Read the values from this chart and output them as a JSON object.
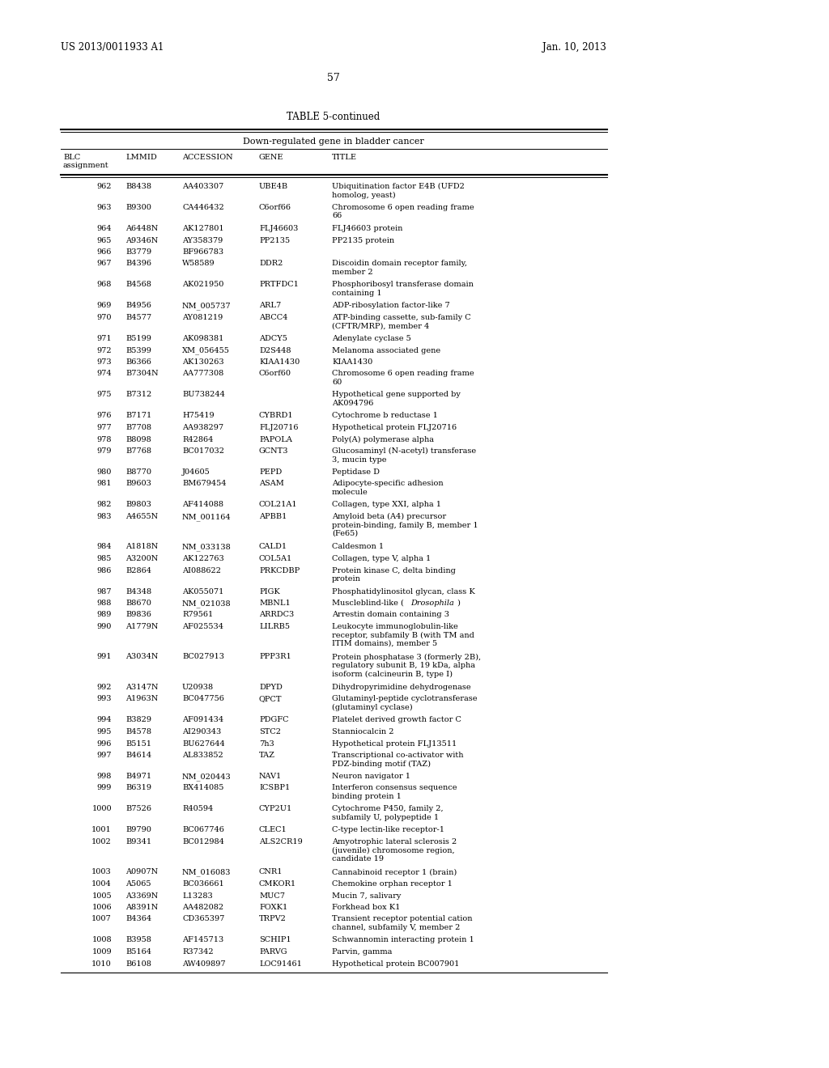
{
  "header_left": "US 2013/0011933 A1",
  "header_right": "Jan. 10, 2013",
  "page_number": "57",
  "table_title": "TABLE 5-continued",
  "subtitle": "Down-regulated gene in bladder cancer",
  "col_headers": [
    "BLC\nassignment",
    "LMMID",
    "ACCESSION",
    "GENE",
    "TITLE"
  ],
  "rows": [
    [
      "962",
      "B8438",
      "AA403307",
      "UBE4B",
      "Ubiquitination factor E4B (UFD2\nhomolog, yeast)"
    ],
    [
      "963",
      "B9300",
      "CA446432",
      "C6orf66",
      "Chromosome 6 open reading frame\n66"
    ],
    [
      "964",
      "A6448N",
      "AK127801",
      "FLJ46603",
      "FLJ46603 protein"
    ],
    [
      "965",
      "A9346N",
      "AY358379",
      "PP2135",
      "PP2135 protein"
    ],
    [
      "966",
      "B3779",
      "BF966783",
      "",
      ""
    ],
    [
      "967",
      "B4396",
      "W58589",
      "DDR2",
      "Discoidin domain receptor family,\nmember 2"
    ],
    [
      "968",
      "B4568",
      "AK021950",
      "PRTFDC1",
      "Phosphoribosyl transferase domain\ncontaining 1"
    ],
    [
      "969",
      "B4956",
      "NM_005737",
      "ARL7",
      "ADP-ribosylation factor-like 7"
    ],
    [
      "970",
      "B4577",
      "AY081219",
      "ABCC4",
      "ATP-binding cassette, sub-family C\n(CFTR/MRP), member 4"
    ],
    [
      "971",
      "B5199",
      "AK098381",
      "ADCY5",
      "Adenylate cyclase 5"
    ],
    [
      "972",
      "B5399",
      "XM_056455",
      "D2S448",
      "Melanoma associated gene"
    ],
    [
      "973",
      "B6366",
      "AK130263",
      "KIAA1430",
      "KIAA1430"
    ],
    [
      "974",
      "B7304N",
      "AA777308",
      "C6orf60",
      "Chromosome 6 open reading frame\n60"
    ],
    [
      "975",
      "B7312",
      "BU738244",
      "",
      "Hypothetical gene supported by\nAK094796"
    ],
    [
      "976",
      "B7171",
      "H75419",
      "CYBRD1",
      "Cytochrome b reductase 1"
    ],
    [
      "977",
      "B7708",
      "AA938297",
      "FLJ20716",
      "Hypothetical protein FLJ20716"
    ],
    [
      "978",
      "B8098",
      "R42864",
      "PAPOLA",
      "Poly(A) polymerase alpha"
    ],
    [
      "979",
      "B7768",
      "BC017032",
      "GCNT3",
      "Glucosaminyl (N-acetyl) transferase\n3, mucin type"
    ],
    [
      "980",
      "B8770",
      "J04605",
      "PEPD",
      "Peptidase D"
    ],
    [
      "981",
      "B9603",
      "BM679454",
      "ASAM",
      "Adipocyte-specific adhesion\nmolecule"
    ],
    [
      "982",
      "B9803",
      "AF414088",
      "COL21A1",
      "Collagen, type XXI, alpha 1"
    ],
    [
      "983",
      "A4655N",
      "NM_001164",
      "APBB1",
      "Amyloid beta (A4) precursor\nprotein-binding, family B, member 1\n(Fe65)"
    ],
    [
      "984",
      "A1818N",
      "NM_033138",
      "CALD1",
      "Caldesmon 1"
    ],
    [
      "985",
      "A3200N",
      "AK122763",
      "COL5A1",
      "Collagen, type V, alpha 1"
    ],
    [
      "986",
      "B2864",
      "AI088622",
      "PRKCDBP",
      "Protein kinase C, delta binding\nprotein"
    ],
    [
      "987",
      "B4348",
      "AK055071",
      "PIGK",
      "Phosphatidylinositol glycan, class K"
    ],
    [
      "988",
      "B8670",
      "NM_021038",
      "MBNL1",
      "Muscleblind-like (Drosophila)"
    ],
    [
      "989",
      "B9836",
      "R79561",
      "ARRDC3",
      "Arrestin domain containing 3"
    ],
    [
      "990",
      "A1779N",
      "AF025534",
      "LILRB5",
      "Leukocyte immunoglobulin-like\nreceptor, subfamily B (with TM and\nITIM domains), member 5"
    ],
    [
      "991",
      "A3034N",
      "BC027913",
      "PPP3R1",
      "Protein phosphatase 3 (formerly 2B),\nregulatory subunit B, 19 kDa, alpha\nisoform (calcineurin B, type I)"
    ],
    [
      "992",
      "A3147N",
      "U20938",
      "DPYD",
      "Dihydropyrimidine dehydrogenase"
    ],
    [
      "993",
      "A1963N",
      "BC047756",
      "QPCT",
      "Glutaminyl-peptide cyclotransferase\n(glutaminyl cyclase)"
    ],
    [
      "994",
      "B3829",
      "AF091434",
      "PDGFC",
      "Platelet derived growth factor C"
    ],
    [
      "995",
      "B4578",
      "AI290343",
      "STC2",
      "Stanniocalcin 2"
    ],
    [
      "996",
      "B5151",
      "BU627644",
      "7h3",
      "Hypothetical protein FLJ13511"
    ],
    [
      "997",
      "B4614",
      "AL833852",
      "TAZ",
      "Transcriptional co-activator with\nPDZ-binding motif (TAZ)"
    ],
    [
      "998",
      "B4971",
      "NM_020443",
      "NAV1",
      "Neuron navigator 1"
    ],
    [
      "999",
      "B6319",
      "BX414085",
      "ICSBP1",
      "Interferon consensus sequence\nbinding protein 1"
    ],
    [
      "1000",
      "B7526",
      "R40594",
      "CYP2U1",
      "Cytochrome P450, family 2,\nsubfamily U, polypeptide 1"
    ],
    [
      "1001",
      "B9790",
      "BC067746",
      "CLEC1",
      "C-type lectin-like receptor-1"
    ],
    [
      "1002",
      "B9341",
      "BC012984",
      "ALS2CR19",
      "Amyotrophic lateral sclerosis 2\n(juvenile) chromosome region,\ncandidate 19"
    ],
    [
      "1003",
      "A0907N",
      "NM_016083",
      "CNR1",
      "Cannabinoid receptor 1 (brain)"
    ],
    [
      "1004",
      "A5065",
      "BC036661",
      "CMKOR1",
      "Chemokine orphan receptor 1"
    ],
    [
      "1005",
      "A3369N",
      "L13283",
      "MUC7",
      "Mucin 7, salivary"
    ],
    [
      "1006",
      "A8391N",
      "AA482082",
      "FOXK1",
      "Forkhead box K1"
    ],
    [
      "1007",
      "B4364",
      "CD365397",
      "TRPV2",
      "Transient receptor potential cation\nchannel, subfamily V, member 2"
    ],
    [
      "1008",
      "B3958",
      "AF145713",
      "SCHIP1",
      "Schwannomin interacting protein 1"
    ],
    [
      "1009",
      "B5164",
      "R37342",
      "PARVG",
      "Parvin, gamma"
    ],
    [
      "1010",
      "B6108",
      "AW409897",
      "LOC91461",
      "Hypothetical protein BC007901"
    ]
  ],
  "bg_color": "#ffffff",
  "text_color": "#000000",
  "font_size": 7.0,
  "header_font_size": 8.5
}
